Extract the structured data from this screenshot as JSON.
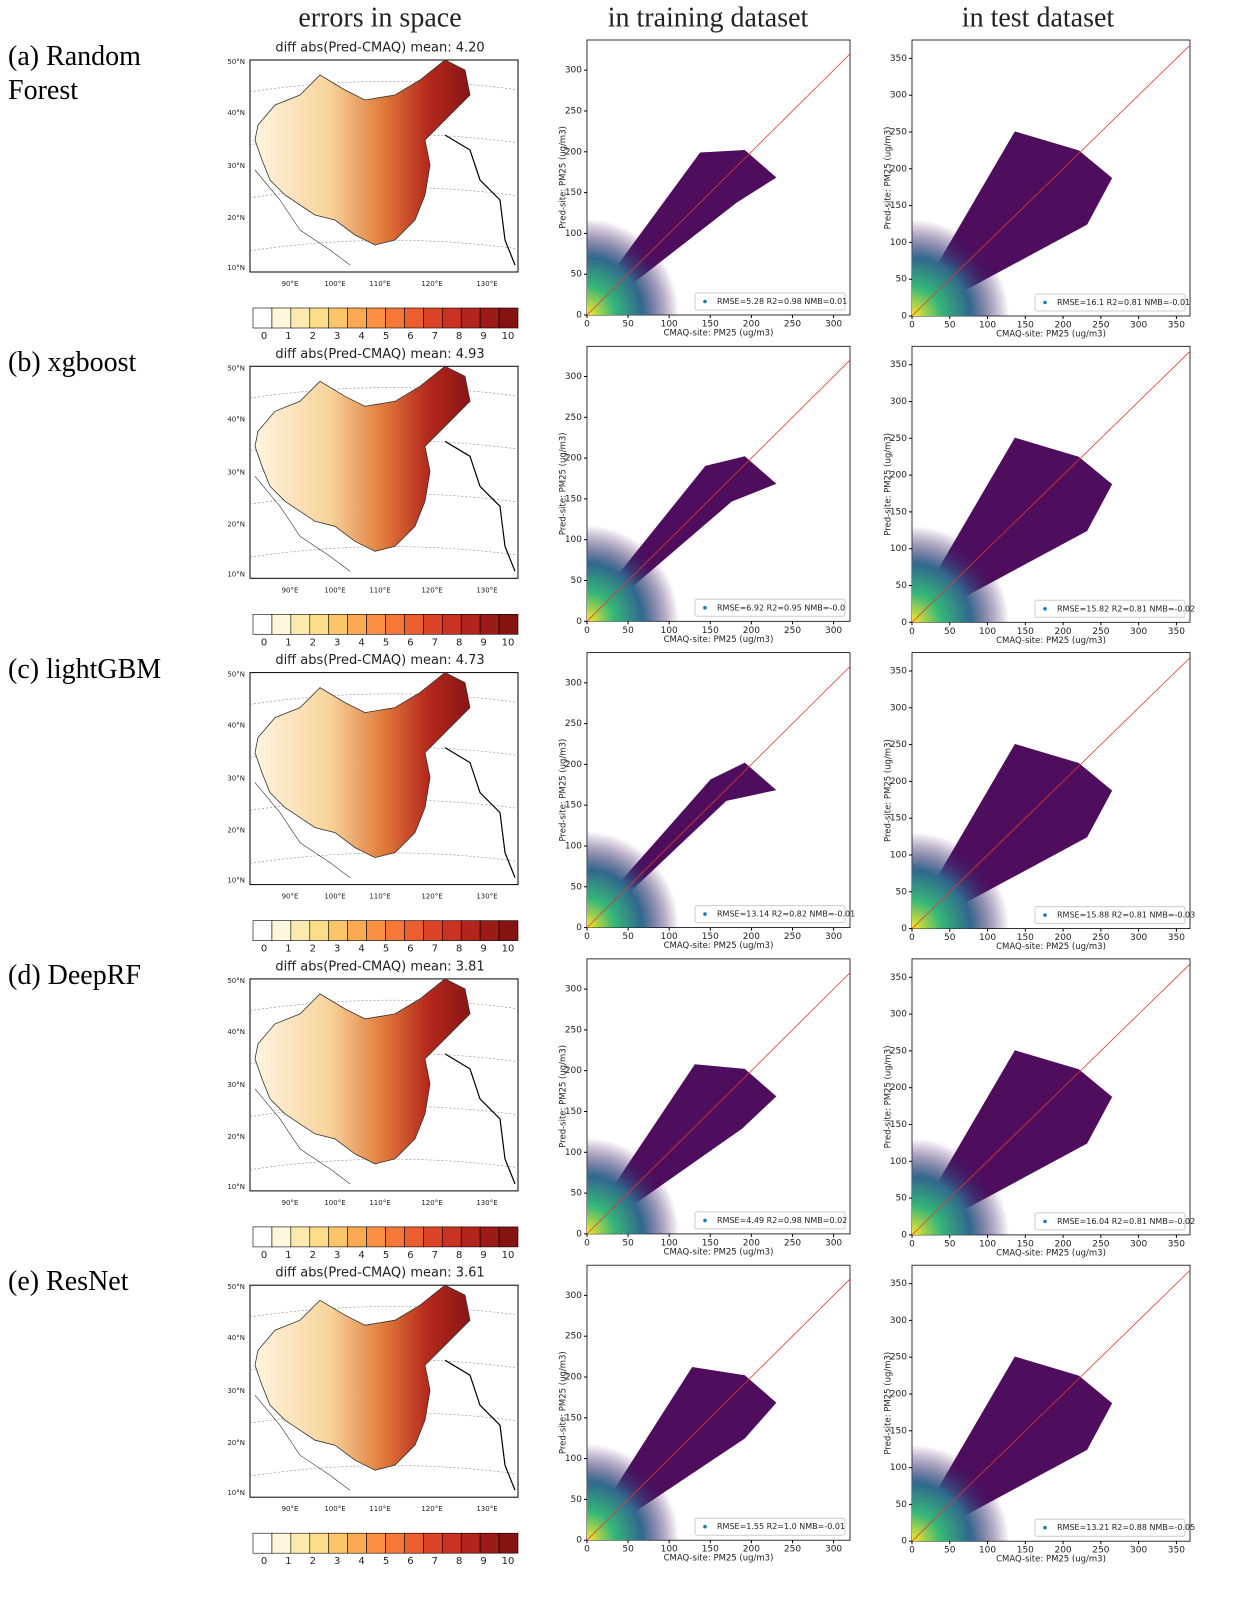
{
  "column_headers": [
    "errors in space",
    "in training dataset",
    "in test dataset"
  ],
  "map_axes": {
    "lat_ticks": [
      "50°N",
      "40°N",
      "30°N",
      "20°N",
      "10°N"
    ],
    "lon_ticks": [
      "90°E",
      "100°E",
      "110°E",
      "120°E",
      "130°E"
    ],
    "colorbar_ticks": [
      0,
      1,
      2,
      3,
      4,
      5,
      6,
      7,
      8,
      9,
      10
    ]
  },
  "train_axes": {
    "xlabel": "CMAQ-site: PM25 (ug/m3)",
    "ylabel": "Pred-site: PM25 (ug/m3)",
    "xlim": [
      0,
      320
    ],
    "ylim": [
      0,
      337
    ],
    "xticks": [
      0,
      50,
      100,
      150,
      200,
      250,
      300
    ],
    "yticks": [
      0,
      50,
      100,
      150,
      200,
      250,
      300
    ]
  },
  "test_axes": {
    "xlabel": "CMAQ-site: PM25 (ug/m3)",
    "ylabel": "Pred-site: PM25 (ug/m3)",
    "xlim": [
      0,
      368
    ],
    "ylim": [
      0,
      375
    ],
    "xticks": [
      0,
      50,
      100,
      150,
      200,
      250,
      300,
      350
    ],
    "yticks": [
      0,
      50,
      100,
      150,
      200,
      250,
      300,
      350
    ]
  },
  "rows": [
    {
      "label": "(a) Random Forest",
      "map_title": "diff abs(Pred-CMAQ) mean: 4.20",
      "train_stats": "RMSE=5.28 R2=0.98 NMB=0.01",
      "test_stats": "RMSE=16.1 R2=0.81 NMB=-0.01"
    },
    {
      "label": "(b) xgboost",
      "map_title": "diff abs(Pred-CMAQ) mean: 4.93",
      "train_stats": "RMSE=6.92 R2=0.95 NMB=-0.0",
      "test_stats": "RMSE=15.82 R2=0.81 NMB=-0.02"
    },
    {
      "label": "(c) lightGBM",
      "map_title": "diff abs(Pred-CMAQ) mean: 4.73",
      "train_stats": "RMSE=13.14 R2=0.82 NMB=-0.01",
      "test_stats": "RMSE=15.88 R2=0.81 NMB=-0.03"
    },
    {
      "label": "(d) DeepRF",
      "map_title": "diff abs(Pred-CMAQ) mean: 3.81",
      "train_stats": "RMSE=4.49 R2=0.98 NMB=0.02",
      "test_stats": "RMSE=16.04 R2=0.81 NMB=-0.02"
    },
    {
      "label": "(e) ResNet",
      "map_title": "diff abs(Pred-CMAQ) mean: 3.61",
      "train_stats": "RMSE=1.55 R2=1.0 NMB=-0.01",
      "test_stats": "RMSE=13.21 R2=0.88 NMB=-0.05"
    }
  ]
}
